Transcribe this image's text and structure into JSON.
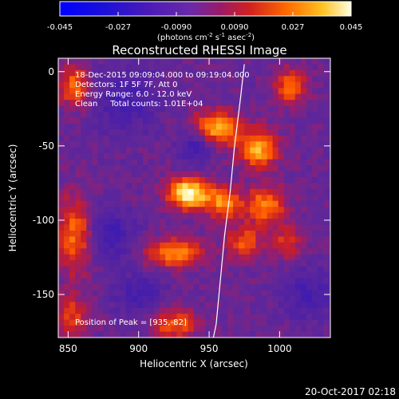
{
  "chart_data": {
    "type": "heatmap",
    "title": "Reconstructed RHESSI Image",
    "xlabel": "Heliocentric X (arcsec)",
    "ylabel": "Heliocentric Y (arcsec)",
    "xlim": [
      843,
      1036
    ],
    "ylim": [
      -179,
      9
    ],
    "xticks": [
      850,
      900,
      950,
      1000
    ],
    "yticks": [
      0,
      -50,
      -100,
      -150
    ],
    "colorbar": {
      "range": [
        -0.045,
        0.045
      ],
      "ticks": [
        "-0.045",
        "-0.027",
        "-0.0090",
        "0.0090",
        "0.027",
        "0.045"
      ],
      "units_text": "(photons cm",
      "units_exp1": "-2",
      "units_mid": " s",
      "units_exp2": "-1",
      "units_mid2": " asec",
      "units_exp3": "-2",
      "units_end": ")"
    },
    "annotations": [
      "18-Dec-2015 09:09:04.000 to 09:19:04.000",
      "Detectors: 1F 5F 7F, Att 0",
      "Energy Range: 6.0 - 12.0 keV",
      "Clean     Total counts: 1.01E+04"
    ],
    "peak_label": "Position of Peak = [935,-82]",
    "peak": [
      935,
      -82
    ],
    "limb_curve": [
      [
        975,
        5
      ],
      [
        972,
        -20
      ],
      [
        968,
        -50
      ],
      [
        965,
        -80
      ],
      [
        961,
        -110
      ],
      [
        958,
        -140
      ],
      [
        955,
        -170
      ],
      [
        953,
        -179
      ]
    ],
    "sources": [
      {
        "x": 935,
        "y": -82,
        "amp": 1.0,
        "sx": 10,
        "sy": 7
      },
      {
        "x": 960,
        "y": -88,
        "amp": 0.6,
        "sx": 9,
        "sy": 8
      },
      {
        "x": 955,
        "y": -38,
        "amp": 0.7,
        "sx": 12,
        "sy": 8
      },
      {
        "x": 985,
        "y": -52,
        "amp": 0.7,
        "sx": 10,
        "sy": 9
      },
      {
        "x": 990,
        "y": -90,
        "amp": 0.6,
        "sx": 10,
        "sy": 9
      },
      {
        "x": 975,
        "y": -115,
        "amp": 0.45,
        "sx": 9,
        "sy": 8
      },
      {
        "x": 925,
        "y": -122,
        "amp": 0.65,
        "sx": 14,
        "sy": 7
      },
      {
        "x": 1008,
        "y": -10,
        "amp": 0.55,
        "sx": 8,
        "sy": 8
      },
      {
        "x": 855,
        "y": -10,
        "amp": 0.55,
        "sx": 8,
        "sy": 10
      },
      {
        "x": 855,
        "y": -110,
        "amp": 0.55,
        "sx": 9,
        "sy": 18
      },
      {
        "x": 852,
        "y": -165,
        "amp": 0.4,
        "sx": 8,
        "sy": 10
      },
      {
        "x": 925,
        "y": -170,
        "amp": 0.5,
        "sx": 12,
        "sy": 7
      },
      {
        "x": 1005,
        "y": -115,
        "amp": 0.35,
        "sx": 8,
        "sy": 8
      },
      {
        "x": 940,
        "y": -50,
        "amp": -0.4,
        "sx": 8,
        "sy": 8
      },
      {
        "x": 880,
        "y": -110,
        "amp": -0.35,
        "sx": 12,
        "sy": 12
      },
      {
        "x": 900,
        "y": -150,
        "amp": -0.3,
        "sx": 12,
        "sy": 10
      },
      {
        "x": 890,
        "y": -20,
        "amp": -0.3,
        "sx": 15,
        "sy": 15
      },
      {
        "x": 1020,
        "y": -150,
        "amp": -0.3,
        "sx": 12,
        "sy": 12
      }
    ]
  },
  "footer": {
    "timestamp": "20-Oct-2017 02:18"
  }
}
